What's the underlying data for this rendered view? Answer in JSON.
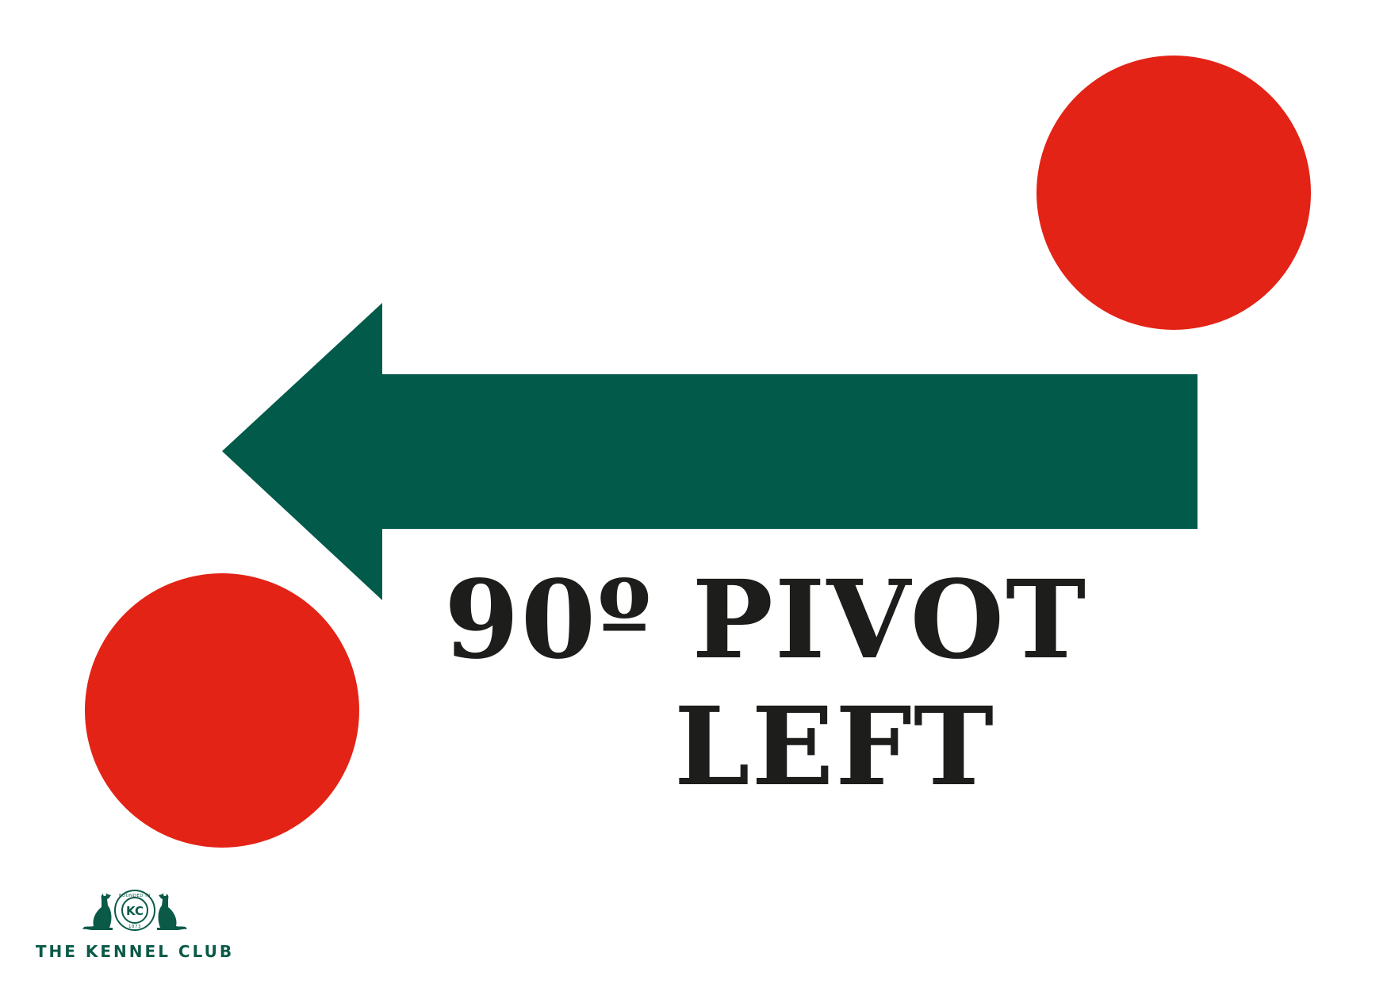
{
  "sign": {
    "line1": "90º PIVOT",
    "line2": "LEFT",
    "arrow_direction": "left",
    "arrow_icon": "arrow-left-icon",
    "marker_icon": "red-circle-marker-icon"
  },
  "colors": {
    "arrow": "#025a4a",
    "markers": "#e32316",
    "text": "#1d1d1b",
    "logo": "#0b5a48",
    "background": "#ffffff"
  },
  "logo": {
    "wordmark": "THE KENNEL CLUB",
    "badge_initials": "KC",
    "badge_ring_text": "FOUNDED IN",
    "badge_year": "1873",
    "icon": "kennel-club-logo-icon"
  }
}
